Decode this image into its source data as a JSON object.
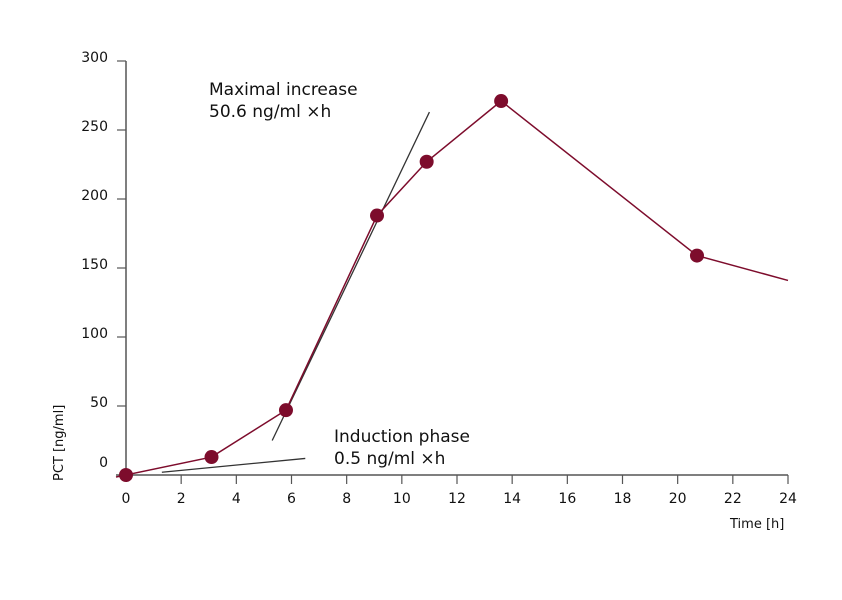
{
  "chart_data": {
    "type": "line",
    "title": "",
    "xlabel": "Time [h]",
    "ylabel": "PCT [ng/ml]",
    "xlim": [
      0,
      24
    ],
    "ylim": [
      0,
      300
    ],
    "xticks": [
      0,
      2,
      4,
      6,
      8,
      10,
      12,
      14,
      16,
      18,
      20,
      22,
      24
    ],
    "yticks": [
      0,
      50,
      100,
      150,
      200,
      250,
      300
    ],
    "grid": false,
    "series": [
      {
        "color": "#7d0c2c",
        "points": [
          {
            "x": 0,
            "y": 0,
            "marker": true
          },
          {
            "x": 3.1,
            "y": 13,
            "marker": true
          },
          {
            "x": 5.8,
            "y": 47,
            "marker": true
          },
          {
            "x": 9.1,
            "y": 188,
            "marker": true
          },
          {
            "x": 10.9,
            "y": 227,
            "marker": true
          },
          {
            "x": 13.6,
            "y": 271,
            "marker": true
          },
          {
            "x": 20.7,
            "y": 159,
            "marker": true
          },
          {
            "x": 24,
            "y": 141,
            "marker": false
          }
        ]
      }
    ],
    "tangent_lines": [
      {
        "color": "#333333",
        "from": [
          5.3,
          25
        ],
        "to": [
          11.0,
          263
        ]
      },
      {
        "color": "#333333",
        "from": [
          1.3,
          2
        ],
        "to": [
          6.5,
          12
        ]
      }
    ],
    "annotations": [
      {
        "line1": "Maximal increase",
        "line2": "50.6 ng/ml ×h"
      },
      {
        "line1": "Induction phase",
        "line2": "0.5 ng/ml ×h"
      }
    ]
  }
}
